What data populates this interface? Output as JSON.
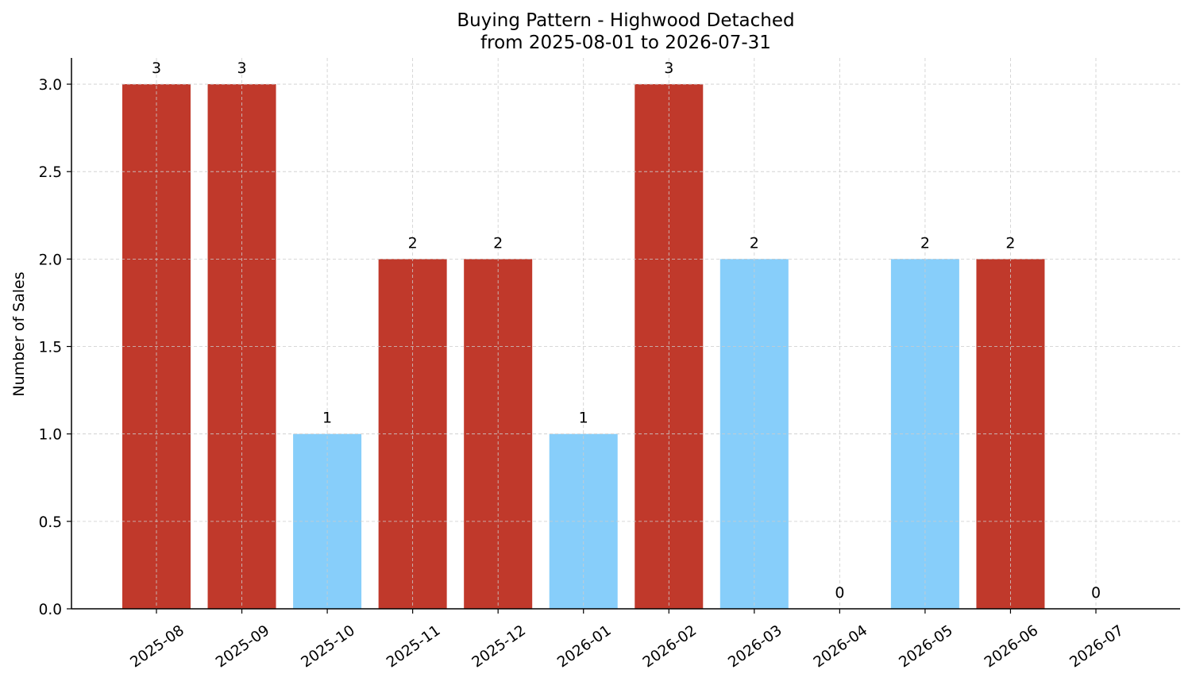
{
  "chart_data": {
    "type": "bar",
    "title": "Buying Pattern - Highwood Detached",
    "subtitle": "from 2025-08-01 to 2026-07-31",
    "xlabel": "",
    "ylabel": "Number of Sales",
    "categories": [
      "2025-08",
      "2025-09",
      "2025-10",
      "2025-11",
      "2025-12",
      "2026-01",
      "2026-02",
      "2026-03",
      "2026-04",
      "2026-05",
      "2026-06",
      "2026-07"
    ],
    "values": [
      3,
      3,
      1,
      2,
      2,
      1,
      3,
      2,
      0,
      2,
      2,
      0
    ],
    "value_labels": [
      "3",
      "3",
      "1",
      "2",
      "2",
      "1",
      "3",
      "2",
      "0",
      "2",
      "2",
      "0"
    ],
    "bar_colors": [
      "#c0392b",
      "#c0392b",
      "#87cefa",
      "#c0392b",
      "#c0392b",
      "#87cefa",
      "#c0392b",
      "#87cefa",
      "#87cefa",
      "#87cefa",
      "#c0392b",
      "#87cefa"
    ],
    "ylim": [
      0,
      3.15
    ],
    "yticks": [
      0,
      0.5,
      1,
      1.5,
      2,
      2.5,
      3
    ],
    "ytick_labels": [
      "0.0",
      "0.5",
      "1.0",
      "1.5",
      "2.0",
      "2.5",
      "3.0"
    ],
    "grid": true,
    "legend": false
  }
}
